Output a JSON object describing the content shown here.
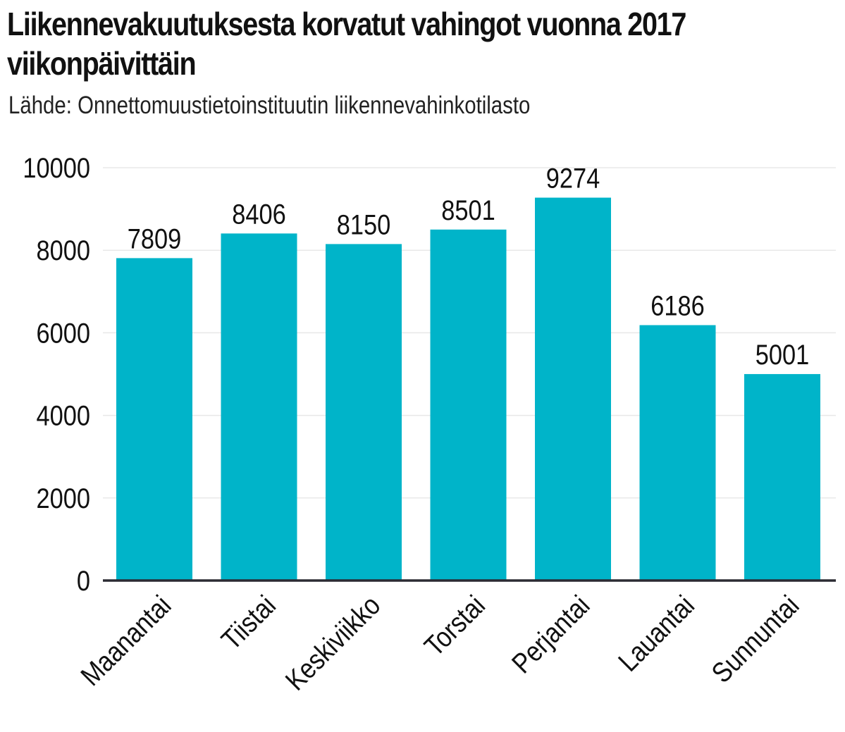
{
  "chart_data": {
    "type": "bar",
    "title": "Liikennevakuutuksesta korvatut vahingot vuonna 2017 viikonpäivittäin",
    "subtitle": "Lähde: Onnettomuustietoinstituutin liikennevahinkotilasto",
    "categories": [
      "Maanantai",
      "Tiistai",
      "Keskiviikko",
      "Torstai",
      "Perjantai",
      "Lauantai",
      "Sunnuntai"
    ],
    "values": [
      7809,
      8406,
      8150,
      8501,
      9274,
      6186,
      5001
    ],
    "value_labels": [
      "7809",
      "8406",
      "8150",
      "8501",
      "9274",
      "6186",
      "5001"
    ],
    "yticks": [
      0,
      2000,
      4000,
      6000,
      8000,
      10000
    ],
    "ytick_labels": [
      "0",
      "2000",
      "4000",
      "6000",
      "8000",
      "10000"
    ],
    "ylim": [
      0,
      10000
    ],
    "xlabel": "",
    "ylabel": "",
    "grid": true,
    "legend": "none",
    "colors": {
      "bar": "#00b4c9",
      "grid": "#e8e8e8",
      "axis": "#2b2b33"
    }
  }
}
